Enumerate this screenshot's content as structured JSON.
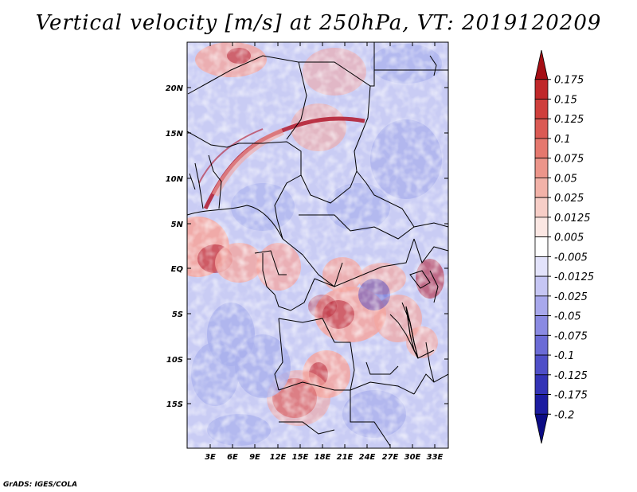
{
  "title": "Vertical velocity [m/s] at 250hPa, VT: 2019120209",
  "credit": "GrADS: IGES/COLA",
  "lat_labels": [
    "20N",
    "15N",
    "10N",
    "5N",
    "EQ",
    "5S",
    "10S",
    "15S"
  ],
  "lon_labels": [
    "3E",
    "6E",
    "9E",
    "12E",
    "15E",
    "18E",
    "21E",
    "24E",
    "27E",
    "30E",
    "33E"
  ],
  "colorbar": {
    "labels": [
      "0.175",
      "0.15",
      "0.125",
      "0.1",
      "0.075",
      "0.05",
      "0.025",
      "0.0125",
      "0.005",
      "-0.005",
      "-0.0125",
      "-0.025",
      "-0.05",
      "-0.075",
      "-0.1",
      "-0.125",
      "-0.175",
      "-0.2"
    ],
    "colors": [
      "#a50f15",
      "#c0282a",
      "#cf3f3c",
      "#db5a54",
      "#e5786e",
      "#ec958a",
      "#f2b2a8",
      "#f7cec7",
      "#fbe7e3",
      "#ffffff",
      "#e3e3fb",
      "#c6c6f4",
      "#a8a8ec",
      "#8a8ae2",
      "#6b6bd6",
      "#4f4fc8",
      "#3333b6",
      "#1c1ca0",
      "#0b0b85"
    ]
  },
  "colors": {
    "positive_strong": "#b2182b",
    "positive_weak": "#f4a6a0",
    "negative_weak": "#aab0ec",
    "negative_strong": "#3b3bc0",
    "boundary": "#000000"
  }
}
